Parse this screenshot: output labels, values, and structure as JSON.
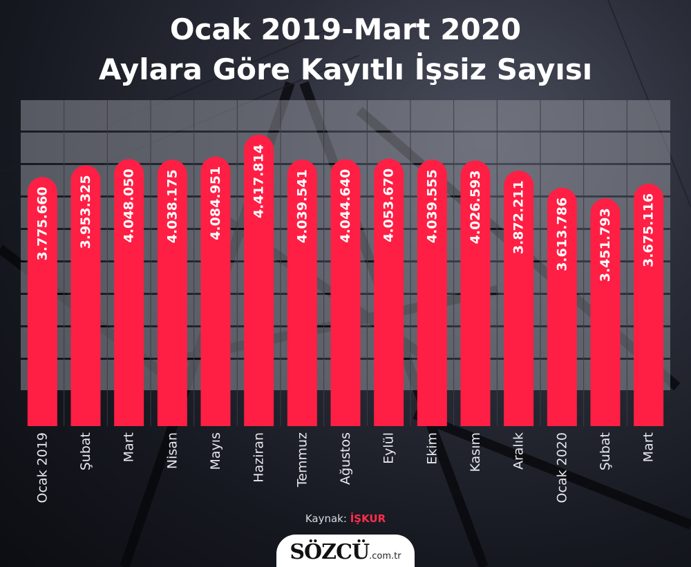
{
  "header": {
    "title_line1": "Ocak 2019-Mart 2020",
    "title_line2": "Aylara Göre Kayıtlı İşsiz Sayısı"
  },
  "source": {
    "label": "Kaynak:",
    "name": "İŞKUR"
  },
  "logo": {
    "main": "SÖZCÜ",
    "suffix": ".com.tr"
  },
  "colors": {
    "bar": "#ff1f44",
    "label_text": "#ffffff",
    "band": "#8e9099"
  },
  "chart_data": {
    "type": "bar",
    "categories": [
      "Ocak 2019",
      "Şubat",
      "Mart",
      "Nisan",
      "Mayıs",
      "Haziran",
      "Temmuz",
      "Ağustos",
      "Eylül",
      "Ekim",
      "Kasım",
      "Aralık",
      "Ocak 2020",
      "Şubat",
      "Mart"
    ],
    "values": [
      3775660,
      3953325,
      4048050,
      4038175,
      4084951,
      4417814,
      4039541,
      4044640,
      4053670,
      4039555,
      4026593,
      3872211,
      3613786,
      3451793,
      3675116
    ],
    "value_labels": [
      "3.775.660",
      "3.953.325",
      "4.048.050",
      "4.038.175",
      "4.084.951",
      "4.417.814",
      "4.039.541",
      "4.044.640",
      "4.053.670",
      "4.039.555",
      "4.026.593",
      "3.872.211",
      "3.613.786",
      "3.451.793",
      "3.675.116"
    ],
    "title": "Ocak 2019-Mart 2020 Aylara Göre Kayıtlı İşsiz Sayısı",
    "xlabel": "",
    "ylabel": "",
    "ylim": [
      0,
      4417814
    ],
    "grid": true,
    "legend": "none"
  }
}
